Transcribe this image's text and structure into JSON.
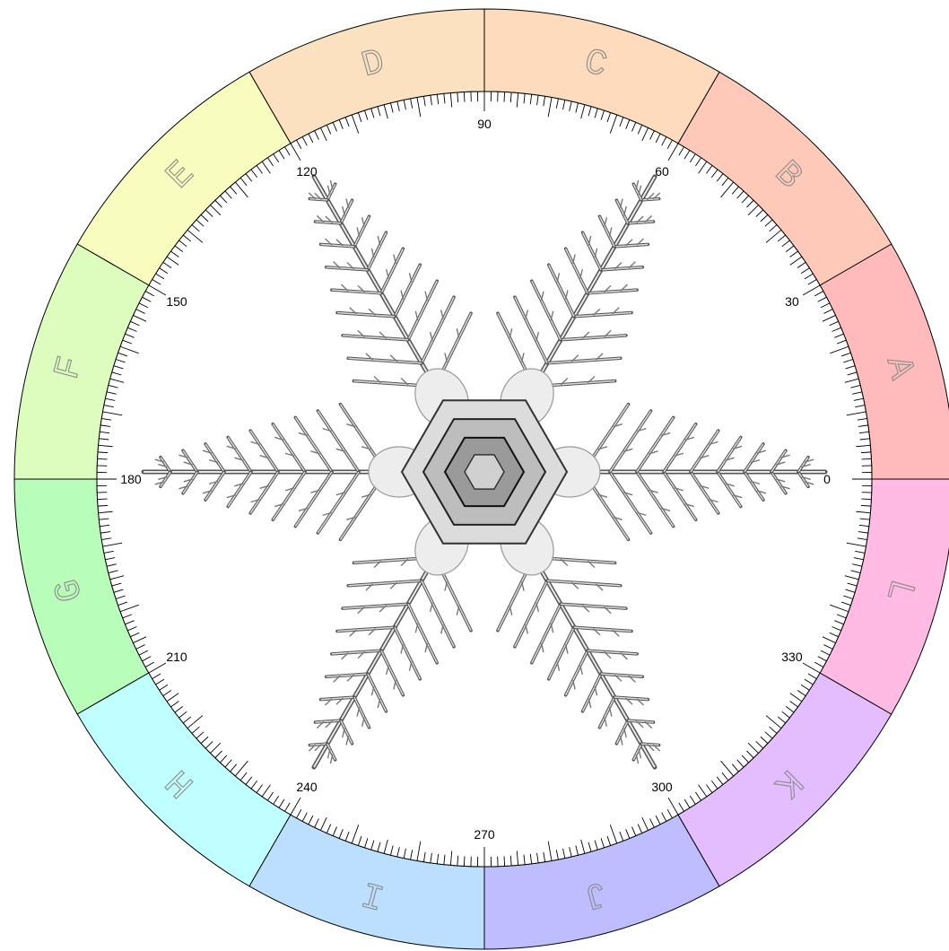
{
  "dial": {
    "sectors": [
      {
        "letter": "A",
        "color": "#FFBBBB"
      },
      {
        "letter": "B",
        "color": "#FFC9B9"
      },
      {
        "letter": "C",
        "color": "#FDDBBC"
      },
      {
        "letter": "D",
        "color": "#FBE1BF"
      },
      {
        "letter": "E",
        "color": "#F8FDBF"
      },
      {
        "letter": "F",
        "color": "#DDFDBF"
      },
      {
        "letter": "G",
        "color": "#B9FDBA"
      },
      {
        "letter": "H",
        "color": "#BFFFFF"
      },
      {
        "letter": "I",
        "color": "#BDDFFF"
      },
      {
        "letter": "J",
        "color": "#BDBDFF"
      },
      {
        "letter": "K",
        "color": "#E3BDFF"
      },
      {
        "letter": "L",
        "color": "#FFBBE3"
      }
    ],
    "degree_labels": [
      {
        "deg": 0,
        "text": "0"
      },
      {
        "deg": 30,
        "text": "30"
      },
      {
        "deg": 60,
        "text": "60"
      },
      {
        "deg": 90,
        "text": "90"
      },
      {
        "deg": 120,
        "text": "120"
      },
      {
        "deg": 150,
        "text": "150"
      },
      {
        "deg": 180,
        "text": "180"
      },
      {
        "deg": 210,
        "text": "210"
      },
      {
        "deg": 240,
        "text": "240"
      },
      {
        "deg": 270,
        "text": "270"
      },
      {
        "deg": 300,
        "text": "300"
      },
      {
        "deg": 330,
        "text": "330"
      }
    ],
    "center_image": "snowflake"
  }
}
